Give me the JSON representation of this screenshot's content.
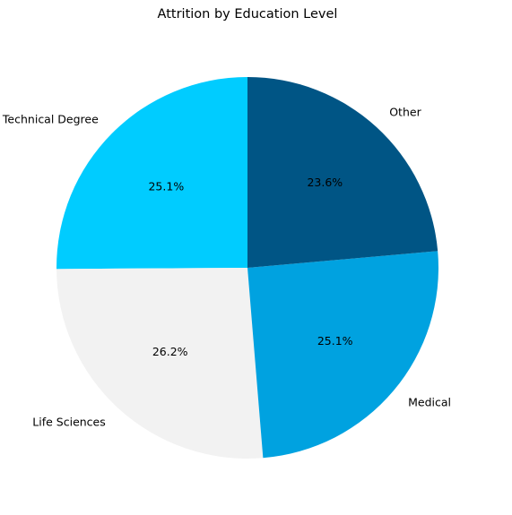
{
  "chart_data": {
    "type": "pie",
    "title": "Attrition by Education Level",
    "slices": [
      {
        "label": "Technical Degree",
        "value": 25.1,
        "pct_label": "25.1%",
        "color": "#00ccff"
      },
      {
        "label": "Life Sciences",
        "value": 26.2,
        "pct_label": "26.2%",
        "color": "#f2f2f2"
      },
      {
        "label": "Medical",
        "value": 25.1,
        "pct_label": "25.1%",
        "color": "#00a2e0"
      },
      {
        "label": "Other",
        "value": 23.6,
        "pct_label": "23.6%",
        "color": "#005585"
      }
    ],
    "start_angle_deg": 90,
    "direction": "counterclockwise",
    "legend": "none"
  }
}
